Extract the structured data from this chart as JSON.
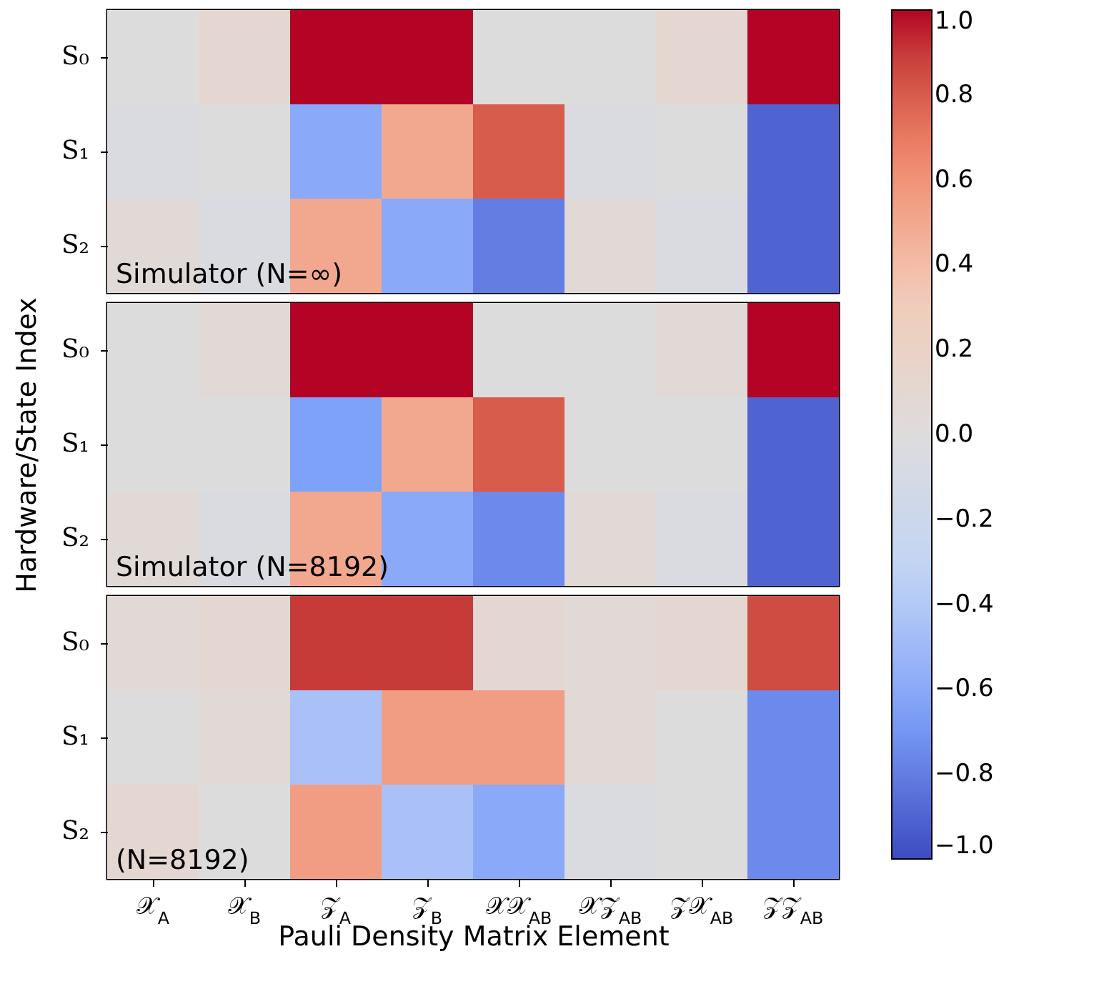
{
  "chart_data": {
    "type": "heatmap",
    "categories": [
      "𝒳$_{A}$",
      "𝒳$_{B}$",
      "𝒵$_{A}$",
      "𝒵$_{B}$",
      "𝒳𝒳$_{AB}$",
      "𝒳𝒵$_{AB}$",
      "𝒵𝒳$_{AB}$",
      "𝒵𝒵$_{AB}$"
    ],
    "y_categories": [
      "S₀",
      "S₁",
      "S₂",
      "S₀",
      "S₁",
      "S₂",
      "S₀",
      "S₁",
      "S₂"
    ],
    "cells": [
      [
        0.0,
        0.1,
        1.0,
        1.0,
        0.0,
        0.0,
        0.1,
        1.0
      ],
      [
        -0.05,
        0.0,
        -0.6,
        0.5,
        0.8,
        -0.05,
        0.0,
        -0.9
      ],
      [
        0.05,
        -0.05,
        0.5,
        -0.6,
        -0.8,
        0.05,
        -0.05,
        -0.9
      ],
      [
        0.0,
        0.05,
        1.0,
        1.0,
        0.0,
        0.0,
        0.05,
        1.0
      ],
      [
        0.0,
        0.0,
        -0.65,
        0.5,
        0.8,
        0.0,
        0.0,
        -0.9
      ],
      [
        0.05,
        -0.05,
        0.5,
        -0.6,
        -0.75,
        0.05,
        -0.05,
        -0.9
      ],
      [
        0.05,
        0.1,
        0.9,
        0.9,
        0.1,
        0.05,
        0.1,
        0.85
      ],
      [
        0.0,
        0.05,
        -0.45,
        0.55,
        0.55,
        0.05,
        0.0,
        -0.75
      ],
      [
        0.1,
        0.0,
        0.55,
        -0.45,
        -0.6,
        -0.05,
        0.0,
        -0.75
      ]
    ],
    "clim": [
      -1,
      1
    ],
    "cticks": [
      {
        "value": -1,
        "label": "−1.0"
      },
      {
        "value": -0.8,
        "label": "−0.8"
      },
      {
        "value": -0.6,
        "label": "−0.6"
      },
      {
        "value": -0.4,
        "label": "−0.4"
      },
      {
        "value": -0.2,
        "label": "−0.2"
      },
      {
        "value": 0,
        "label": "0.0"
      },
      {
        "value": 0.2,
        "label": "0.2"
      },
      {
        "value": 0.4,
        "label": "0.4"
      },
      {
        "value": 0.6,
        "label": "0.6"
      },
      {
        "value": 0.8,
        "label": "0.8"
      },
      {
        "value": 1,
        "label": "1.0"
      }
    ],
    "xlabel": "Pauli Density Matrix Element",
    "ylabel": "Hardware/State Index",
    "annotations": [
      "Simulator (N=∞)",
      "Simulator (N=8192)",
      "(N=8192)"
    ]
  }
}
